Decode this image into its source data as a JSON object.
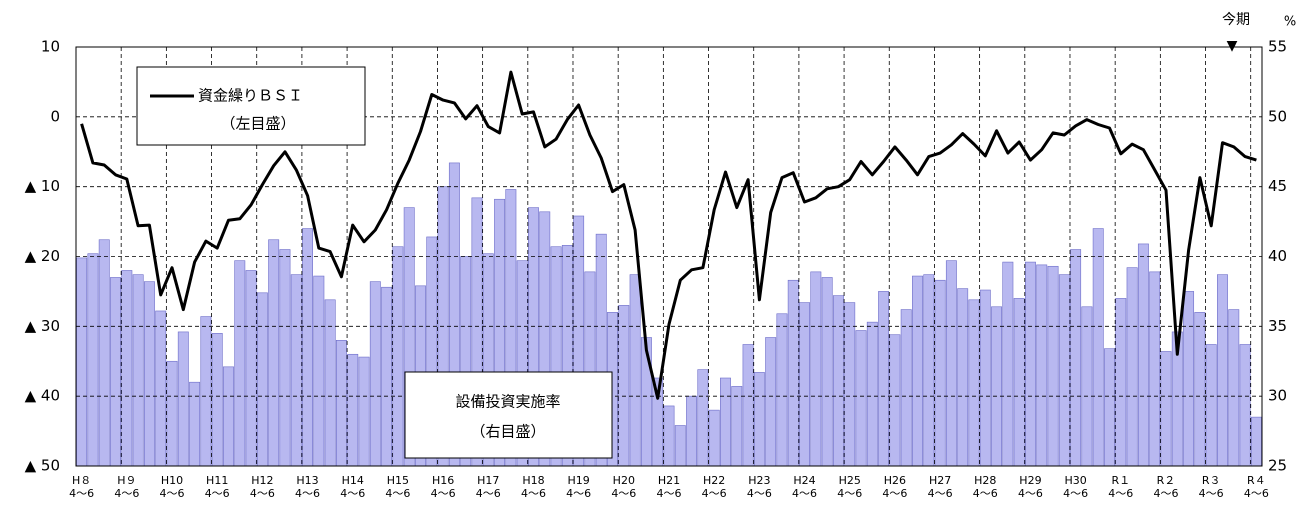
{
  "chart_data": {
    "type": "bar_line",
    "categories": [
      "H８\n4～6",
      null,
      null,
      null,
      "H９\n4～6",
      null,
      null,
      null,
      "H10\n4～6",
      null,
      null,
      null,
      "H11\n4～6",
      null,
      null,
      null,
      "H12\n4～6",
      null,
      null,
      null,
      "H13\n4～6",
      null,
      null,
      null,
      "H14\n4～6",
      null,
      null,
      null,
      "H15\n4～6",
      null,
      null,
      null,
      "H16\n4～6",
      null,
      null,
      null,
      "H17\n4～6",
      null,
      null,
      null,
      "H18\n4～6",
      null,
      null,
      null,
      "H19\n4～6",
      null,
      null,
      null,
      "H20\n4～6",
      null,
      null,
      null,
      "H21\n4～6",
      null,
      null,
      null,
      "H22\n4～6",
      null,
      null,
      null,
      "H23\n4～6",
      null,
      null,
      null,
      "H24\n4～6",
      null,
      null,
      null,
      "H25\n4～6",
      null,
      null,
      null,
      "H26\n4～6",
      null,
      null,
      null,
      "H27\n4～6",
      null,
      null,
      null,
      "H28\n4～6",
      null,
      null,
      null,
      "H29\n4～6",
      null,
      null,
      null,
      "H30\n4～6",
      null,
      null,
      null,
      "R１\n4～6",
      null,
      null,
      null,
      "R２\n4～6",
      null,
      null,
      null,
      "R３\n4～6",
      null,
      null,
      null,
      "R４\n4～6"
    ],
    "series": [
      {
        "name": "設備投資実施率",
        "type": "bar",
        "axis": "y2",
        "color": "#b8b8f0",
        "edge": "#6c6cc8",
        "values": [
          39.9,
          40.2,
          41.2,
          38.5,
          39.0,
          38.7,
          38.2,
          36.1,
          32.5,
          34.6,
          31.0,
          35.7,
          34.5,
          32.1,
          39.7,
          39.0,
          37.4,
          41.2,
          40.5,
          38.7,
          42.0,
          38.6,
          36.9,
          34.0,
          33.0,
          32.8,
          38.2,
          37.8,
          40.7,
          43.5,
          37.9,
          41.4,
          45.0,
          46.7,
          40.0,
          44.2,
          40.2,
          44.1,
          44.8,
          39.7,
          43.5,
          43.2,
          40.7,
          40.8,
          42.9,
          38.9,
          41.6,
          36.0,
          36.5,
          38.7,
          34.2,
          31.3,
          29.3,
          27.9,
          30.0,
          31.9,
          29.0,
          31.3,
          30.7,
          33.7,
          31.7,
          34.2,
          35.9,
          38.3,
          36.7,
          38.9,
          38.5,
          37.2,
          36.7,
          34.7,
          35.3,
          37.5,
          34.4,
          36.2,
          38.6,
          38.7,
          38.3,
          39.7,
          37.7,
          36.9,
          37.6,
          36.4,
          39.6,
          37.0,
          39.6,
          39.4,
          39.3,
          38.7,
          40.5,
          36.4,
          42.0,
          33.4,
          37.0,
          39.2,
          40.9,
          38.9,
          33.2,
          34.6,
          37.5,
          36.0,
          33.7,
          38.7,
          36.2,
          33.7,
          28.5
        ]
      },
      {
        "name": "資金繰りＢＳＩ",
        "type": "line",
        "axis": "y",
        "color": "#000000",
        "values": [
          -1,
          -6.6,
          -6.9,
          -8.3,
          -8.9,
          -15.6,
          -15.5,
          -25.5,
          -21.6,
          -27.6,
          -20.8,
          -17.8,
          -18.8,
          -14.8,
          -14.6,
          -12.6,
          -9.7,
          -7,
          -5,
          -7.6,
          -11.3,
          -18.8,
          -19.3,
          -22.9,
          -15.5,
          -17.9,
          -16.2,
          -13.3,
          -9.5,
          -6.2,
          -2.1,
          3.2,
          2.4,
          2,
          -0.3,
          1.6,
          -1.4,
          -2.3,
          6.4,
          0.4,
          0.7,
          -4.3,
          -3.2,
          -0.4,
          1.7,
          -2.6,
          -5.9,
          -10.7,
          -9.7,
          -16.2,
          -33.4,
          -40.3,
          -29.7,
          -23.4,
          -21.9,
          -21.6,
          -13.3,
          -7.9,
          -13,
          -9,
          -26.2,
          -13.7,
          -8.7,
          -8,
          -12.2,
          -11.6,
          -10.3,
          -10,
          -9,
          -6.4,
          -8.3,
          -6.4,
          -4.3,
          -6.2,
          -8.3,
          -5.7,
          -5.2,
          -4,
          -2.4,
          -3.9,
          -5.6,
          -2,
          -5.2,
          -3.6,
          -6.2,
          -4.7,
          -2.3,
          -2.6,
          -1.3,
          -0.4,
          -1.1,
          -1.6,
          -5.3,
          -3.9,
          -4.7,
          -7.6,
          -10.5,
          -34,
          -19.1,
          -8.7,
          -15.6,
          -3.7,
          -4.3,
          -5.7,
          -6.2
        ]
      }
    ],
    "ylim": [
      -50,
      10
    ],
    "yticks": [
      {
        "value": -50,
        "label": "▲ 50"
      },
      {
        "value": -40,
        "label": "▲ 40"
      },
      {
        "value": -30,
        "label": "▲ 30"
      },
      {
        "value": -20,
        "label": "▲ 20"
      },
      {
        "value": -10,
        "label": "▲ 10"
      },
      0,
      10
    ],
    "y2lim": [
      25,
      55
    ],
    "y2ticks": [
      25,
      30,
      35,
      40,
      45,
      50,
      55
    ],
    "y2_unit": "%",
    "grid": true,
    "annotations": {
      "line_note": "（左目盛）",
      "bar_note": "（右目盛）",
      "current": "今期",
      "current_marker": "▼"
    }
  }
}
